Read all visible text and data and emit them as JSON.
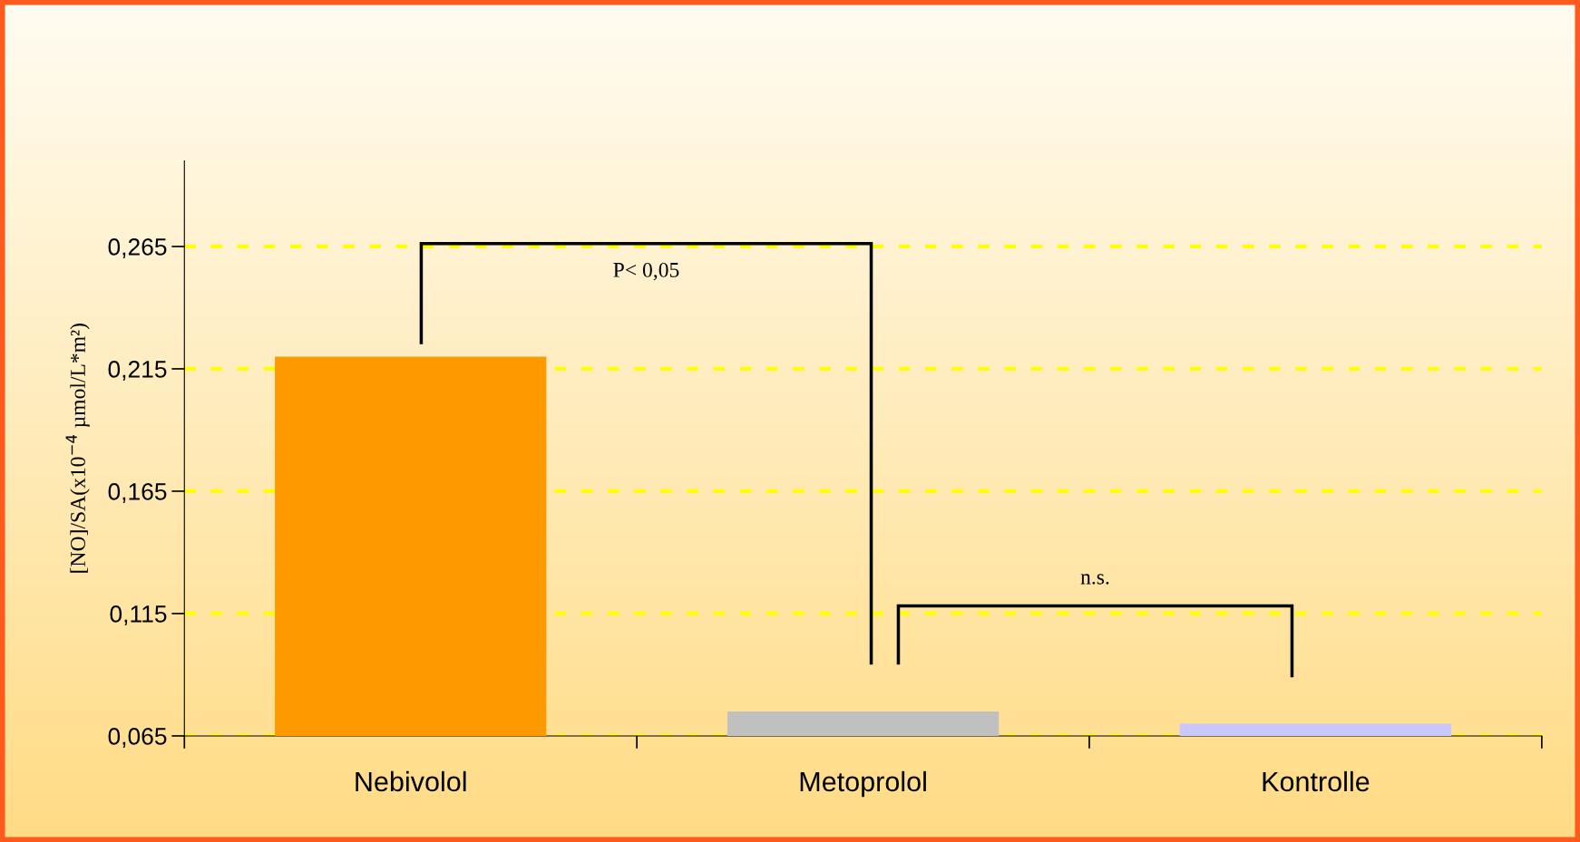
{
  "chart_data": {
    "type": "bar",
    "categories": [
      "Nebivolol",
      "Metoprolol",
      "Kontrolle"
    ],
    "values": [
      0.22,
      0.075,
      0.07
    ],
    "colors": [
      "#ff9900",
      "#c0c0c0",
      "#c8c8ff"
    ],
    "ylabel": "[NO]/SA(x10$^{−4}$ µmol/L*m²)",
    "ylim": [
      0.065,
      0.3
    ],
    "yticks": [
      {
        "value": 0.065,
        "label": "0,065"
      },
      {
        "value": 0.115,
        "label": "0,115"
      },
      {
        "value": 0.165,
        "label": "0,165"
      },
      {
        "value": 0.215,
        "label": "0,215"
      },
      {
        "value": 0.265,
        "label": "0,265"
      }
    ],
    "grid": "y",
    "annotations": [
      "P< 0,05",
      "n.s."
    ]
  }
}
